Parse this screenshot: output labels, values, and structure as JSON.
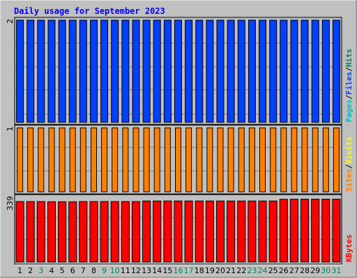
{
  "colors": {
    "background": "#c0c0c0",
    "plot_background": "#c0c0c0",
    "grid": "#808080",
    "title": "#0000ff",
    "hits": "#00805c",
    "files": "#0040ff",
    "pages": "#00c0c0",
    "visits": "#ffff00",
    "sites": "#ff8000",
    "kbytes": "#ff0000",
    "weekday_label": "#000000",
    "weekend_label": "#00805c"
  },
  "chart_data": {
    "type": "bar",
    "title": "Daily usage for September 2023",
    "x": [
      "1",
      "2",
      "3",
      "4",
      "5",
      "6",
      "7",
      "8",
      "9",
      "10",
      "11",
      "12",
      "13",
      "14",
      "15",
      "16",
      "17",
      "18",
      "19",
      "20",
      "21",
      "22",
      "23",
      "24",
      "25",
      "26",
      "27",
      "28",
      "29",
      "30",
      "31"
    ],
    "weekend_days": [
      "3",
      "9",
      "10",
      "16",
      "17",
      "23",
      "24",
      "30",
      "31"
    ],
    "panels": [
      {
        "ymax_label": "2",
        "ymax": 2,
        "legend": [
          {
            "text": "Hits",
            "color_key": "hits"
          },
          {
            "text": "/",
            "color_key": "weekday_label"
          },
          {
            "text": "Files",
            "color_key": "files"
          },
          {
            "text": "/",
            "color_key": "weekday_label"
          },
          {
            "text": "Pages",
            "color_key": "pages"
          }
        ],
        "series": [
          {
            "name": "Files",
            "color_key": "files",
            "values": [
              2,
              2,
              2,
              2,
              2,
              2,
              2,
              2,
              2,
              2,
              2,
              2,
              2,
              2,
              2,
              2,
              2,
              2,
              2,
              2,
              2,
              2,
              2,
              2,
              2,
              2,
              2,
              2,
              2,
              2,
              2
            ]
          }
        ]
      },
      {
        "ymax_label": "1",
        "ymax": 1,
        "legend": [
          {
            "text": "Visits",
            "color_key": "visits"
          },
          {
            "text": "/",
            "color_key": "weekday_label"
          },
          {
            "text": "Sites",
            "color_key": "sites"
          }
        ],
        "series": [
          {
            "name": "Sites",
            "color_key": "sites",
            "values": [
              1,
              1,
              1,
              1,
              1,
              1,
              1,
              1,
              1,
              1,
              1,
              1,
              1,
              1,
              1,
              1,
              1,
              1,
              1,
              1,
              1,
              1,
              1,
              1,
              1,
              1,
              1,
              1,
              1,
              1,
              1
            ]
          }
        ]
      },
      {
        "ymax_label": "339",
        "ymax": 339,
        "legend": [
          {
            "text": "KBytes",
            "color_key": "kbytes"
          }
        ],
        "series": [
          {
            "name": "KBytes",
            "color_key": "kbytes",
            "values": [
              324,
              324,
              324,
              323,
              323,
              323,
              324,
              324,
              324,
              324,
              324,
              324,
              327,
              327,
              327,
              327,
              327,
              327,
              327,
              327,
              327,
              327,
              327,
              327,
              327,
              336,
              337,
              337,
              337,
              337,
              337
            ]
          }
        ]
      }
    ]
  }
}
